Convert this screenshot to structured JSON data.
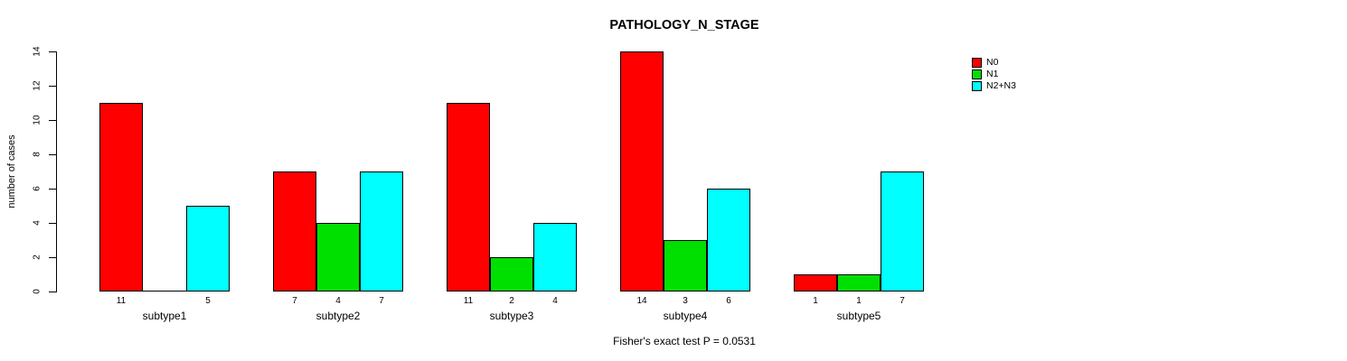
{
  "title": "PATHOLOGY_N_STAGE",
  "footer": "Fisher's exact test P = 0.0531",
  "chart_data": {
    "type": "bar",
    "title": "PATHOLOGY_N_STAGE",
    "categories": [
      "subtype1",
      "subtype2",
      "subtype3",
      "subtype4",
      "subtype5"
    ],
    "series": [
      {
        "name": "N0",
        "color": "#ff0000",
        "values": [
          11,
          7,
          11,
          14,
          1
        ]
      },
      {
        "name": "N1",
        "color": "#00e000",
        "values": [
          0,
          4,
          2,
          3,
          1
        ]
      },
      {
        "name": "N2+N3",
        "color": "#00ffff",
        "values": [
          5,
          7,
          4,
          6,
          7
        ]
      }
    ],
    "xlabel": "",
    "ylabel": "number of cases",
    "ylim": [
      0,
      14
    ],
    "yticks": [
      0,
      2,
      4,
      6,
      8,
      10,
      12,
      14
    ],
    "grid": false,
    "legend_position": "right-outside",
    "bar_value_labels": true,
    "zero_value_labels_hidden": true,
    "annotation": "Fisher's exact test P = 0.0531"
  },
  "colors": {
    "background": "#ffffff",
    "axis": "#000000",
    "text": "#000000",
    "n0": "#ff0000",
    "n1": "#00e000",
    "n2_n3": "#00ffff"
  }
}
